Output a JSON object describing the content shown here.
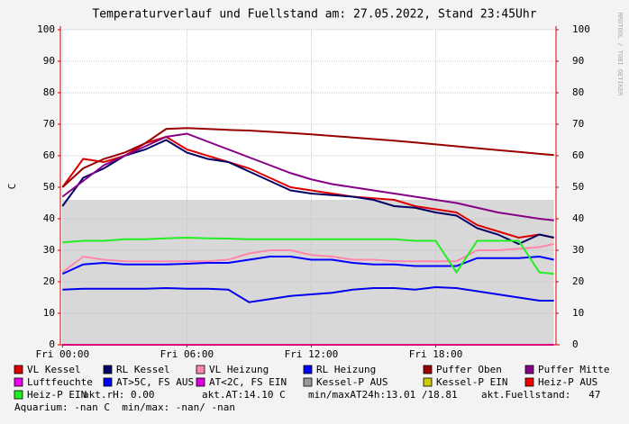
{
  "chart_data": {
    "type": "line",
    "title": "Temperaturverlauf und Fuellstand am: 27.05.2022, Stand 23:45Uhr",
    "y_label": "C",
    "watermark": "RRDTOOL / TOBI OETIKER",
    "xlim": [
      -0.1,
      23.8
    ],
    "ylim": [
      0,
      100
    ],
    "xticks": [
      {
        "value": 0,
        "label": "Fri 00:00"
      },
      {
        "value": 6,
        "label": "Fri 06:00"
      },
      {
        "value": 12,
        "label": "Fri 12:00"
      },
      {
        "value": 18,
        "label": "Fri 18:00"
      }
    ],
    "yticks": [
      0,
      10,
      20,
      30,
      40,
      50,
      60,
      70,
      80,
      90,
      100
    ],
    "grid": true,
    "x": [
      0,
      1,
      2,
      3,
      4,
      5,
      6,
      7,
      8,
      9,
      10,
      11,
      12,
      13,
      14,
      15,
      16,
      17,
      18,
      19,
      20,
      21,
      22,
      23,
      23.7
    ],
    "series": [
      {
        "name": "VL Kessel",
        "color": "#dd0000",
        "values": [
          50,
          59,
          58,
          60,
          64,
          66,
          62,
          60,
          58,
          56,
          53,
          50,
          49,
          48,
          47,
          46.5,
          46,
          44,
          43,
          42,
          38,
          36,
          34,
          35,
          34
        ]
      },
      {
        "name": "RL Kessel",
        "color": "#000066",
        "values": [
          44,
          53,
          56,
          60,
          62,
          65,
          61,
          59,
          58,
          55,
          52,
          49,
          48,
          47.5,
          47,
          46,
          44,
          43.5,
          42,
          41,
          37,
          35,
          32,
          35,
          34
        ]
      },
      {
        "name": "VL Heizung",
        "color": "#ff88aa",
        "values": [
          23,
          28,
          27,
          26.5,
          26.5,
          26.5,
          26.5,
          26.5,
          27,
          29,
          30,
          30,
          28.5,
          28,
          27,
          27,
          26.5,
          26.5,
          26.5,
          26.5,
          30,
          30,
          30.5,
          31,
          32
        ]
      },
      {
        "name": "RL Heizung",
        "color": "#0000ff",
        "values": [
          22.5,
          25.5,
          26,
          25.5,
          25.5,
          25.5,
          25.7,
          26,
          26,
          27,
          28,
          28,
          27,
          27,
          26,
          25.5,
          25.5,
          25,
          25,
          25,
          27.5,
          27.5,
          27.5,
          28,
          27
        ]
      },
      {
        "name": "Puffer Oben",
        "color": "#990000",
        "values": [
          50,
          56,
          59,
          61,
          64,
          68.5,
          68.8,
          68.5,
          68.2,
          68,
          67.6,
          67.2,
          66.8,
          66.3,
          65.8,
          65.3,
          64.8,
          64.2,
          63.6,
          63,
          62.4,
          61.8,
          61.2,
          60.6,
          60.2
        ]
      },
      {
        "name": "Puffer Mitte",
        "color": "#880088",
        "values": [
          47,
          52,
          57,
          60,
          63,
          66,
          67,
          64.5,
          62,
          59.5,
          57,
          54.5,
          52.5,
          51,
          50,
          49,
          48,
          47,
          46,
          45,
          43.5,
          42,
          41,
          40,
          39.5
        ]
      },
      {
        "name": "Luftfeuchte",
        "color": "#ee00ee",
        "values": [
          0,
          0,
          0,
          0,
          0,
          0,
          0,
          0,
          0,
          0,
          0,
          0,
          0,
          0,
          0,
          0,
          0,
          0,
          0,
          0,
          0,
          0,
          0,
          0,
          0
        ]
      },
      {
        "name": "AT>5C, FS AUS",
        "color": "#0000ee",
        "values": [
          17.5,
          17.8,
          17.8,
          17.8,
          17.8,
          18,
          17.8,
          17.8,
          17.5,
          13.5,
          14.5,
          15.5,
          16,
          16.5,
          17.5,
          18,
          18,
          17.5,
          18.3,
          18,
          17,
          16,
          15,
          14,
          14
        ]
      },
      {
        "name": "AT<2C, FS EIN",
        "color": "#dd00dd"
      },
      {
        "name": "Kessel-P AUS",
        "color": "#999999",
        "style": "area",
        "values": [
          46,
          46,
          46,
          46,
          46,
          46,
          46,
          46,
          46,
          46,
          46,
          46,
          46,
          46,
          46,
          46,
          46,
          46,
          46,
          46,
          46,
          46,
          46,
          46,
          46
        ]
      },
      {
        "name": "Kessel-P EIN",
        "color": "#cccc00"
      },
      {
        "name": "Heiz-P AUS",
        "color": "#ee0000"
      },
      {
        "name": "Heiz-P EIN",
        "color": "#22ee22",
        "values": [
          32.5,
          33,
          33,
          33.5,
          33.5,
          33.8,
          34,
          33.8,
          33.7,
          33.5,
          33.5,
          33.5,
          33.5,
          33.5,
          33.5,
          33.5,
          33.5,
          33,
          33,
          23,
          33,
          33,
          33,
          23,
          22.5
        ]
      }
    ],
    "notes": [
      "akt.rH: 0.00",
      "akt.AT:14.10 C",
      "min/maxAT24h:13.01 /18.81",
      "akt.Fuellstand:   47",
      "Aquarium: -nan C  min/max: -nan/ -nan"
    ]
  }
}
